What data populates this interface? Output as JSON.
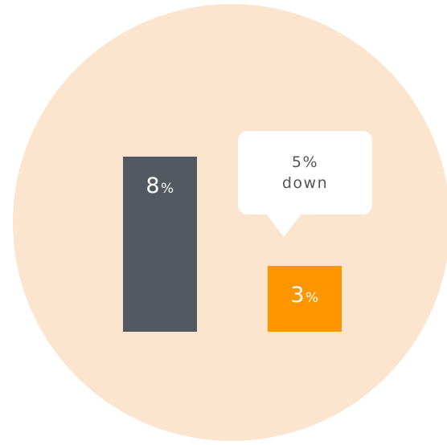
{
  "chart_data": {
    "type": "bar",
    "categories": [
      "",
      ""
    ],
    "values": [
      8,
      3
    ],
    "unit": "%",
    "value_labels": [
      {
        "number": "8",
        "unit": "%"
      },
      {
        "number": "3",
        "unit": "%"
      }
    ],
    "bar_colors": [
      "#545861",
      "#ff9600"
    ],
    "background_color": "#fce5cf",
    "ylim": [
      0,
      8
    ],
    "grid": false,
    "annotation": {
      "line1": "5%",
      "line2": "down",
      "points_to": 1
    }
  }
}
